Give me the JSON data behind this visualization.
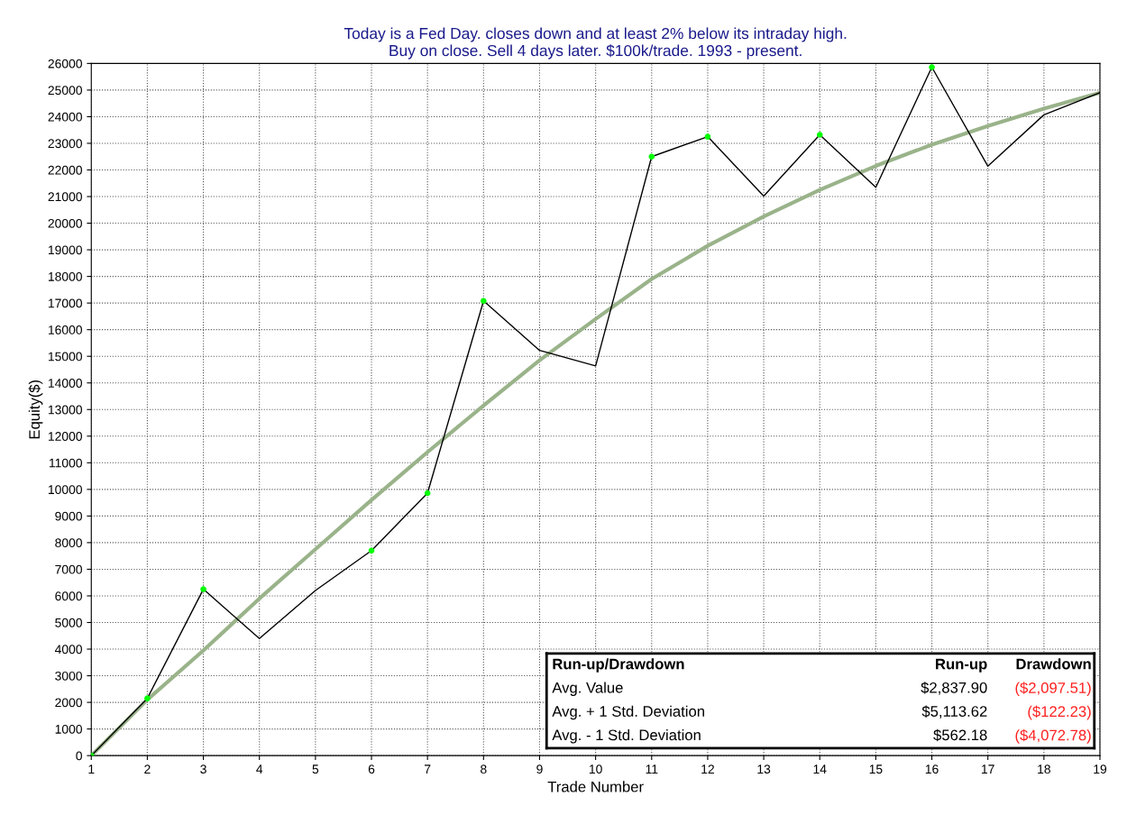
{
  "chart_data": {
    "type": "line",
    "title": "Today is a Fed Day. closes down and at least 2% below its intraday high.\nBuy on close. Sell 4 days later. $100k/trade. 1993 - present.",
    "xlabel": "Trade Number",
    "ylabel": "Equity($)",
    "x": [
      1,
      2,
      3,
      4,
      5,
      6,
      7,
      8,
      9,
      10,
      11,
      12,
      13,
      14,
      15,
      16,
      17,
      18,
      19
    ],
    "series": [
      {
        "color": "#9ab38a",
        "values": [
          0,
          2100,
          3950,
          5900,
          7750,
          9600,
          11400,
          13150,
          14850,
          16400,
          17900,
          19150,
          20250,
          21250,
          22150,
          22950,
          23650,
          24300,
          24900
        ]
      },
      {
        "color": "#000000",
        "values": [
          0,
          2150,
          6250,
          4400,
          6200,
          7700,
          9860,
          17080,
          15220,
          14640,
          22500,
          23250,
          21020,
          23320,
          21350,
          25860,
          22140,
          24070,
          24900
        ]
      },
      {
        "type": "scatter",
        "color": "#00ff00",
        "marker": "circle",
        "values": [
          0,
          2150,
          6250,
          null,
          null,
          7700,
          9860,
          17080,
          null,
          null,
          22500,
          23250,
          null,
          23320,
          null,
          25860,
          null,
          null,
          null
        ]
      }
    ],
    "xlim": [
      1,
      19
    ],
    "ylim": [
      0,
      26000
    ],
    "xticks": [
      1,
      2,
      3,
      4,
      5,
      6,
      7,
      8,
      9,
      10,
      11,
      12,
      13,
      14,
      15,
      16,
      17,
      18,
      19
    ],
    "yticks": [
      0,
      1000,
      2000,
      3000,
      4000,
      5000,
      6000,
      7000,
      8000,
      9000,
      10000,
      11000,
      12000,
      13000,
      14000,
      15000,
      16000,
      17000,
      18000,
      19000,
      20000,
      21000,
      22000,
      23000,
      24000,
      25000,
      26000
    ],
    "grid": true,
    "annotations": [
      "Run-up/Drawdown",
      "Run-up",
      "Drawdown",
      "Avg. Value",
      "$2,837.90",
      "($2,097.51)",
      "Avg. + 1 Std. Deviation",
      "$5,113.62",
      "($122.23)",
      "Avg. - 1 Std. Deviation",
      "$562.18",
      "($4,072.78)"
    ]
  }
}
